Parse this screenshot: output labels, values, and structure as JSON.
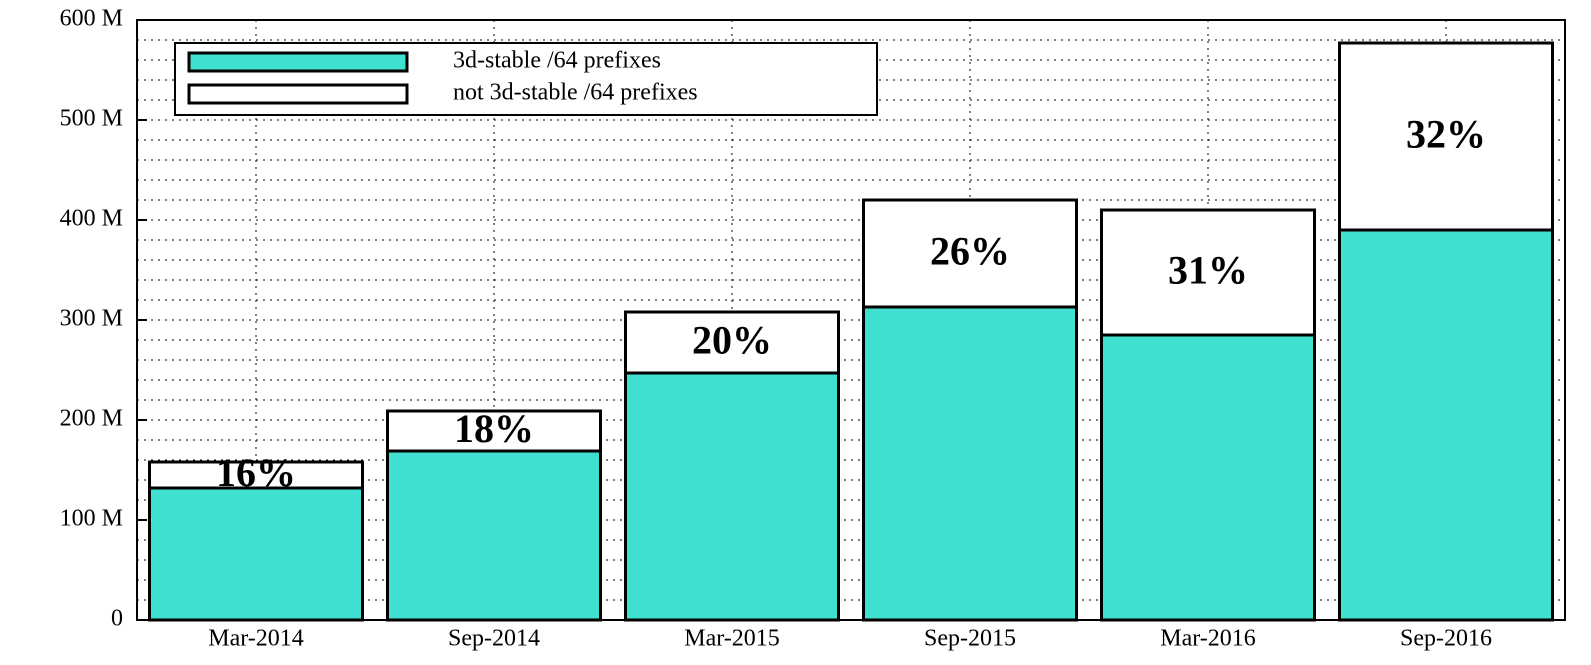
{
  "chart_data": {
    "type": "stacked_bar",
    "categories": [
      "Mar-2014",
      "Sep-2014",
      "Mar-2015",
      "Sep-2015",
      "Mar-2016",
      "Sep-2016"
    ],
    "series": [
      {
        "name": "3d-stable /64 prefixes",
        "color": "#40e0d0",
        "values": [
          132,
          169,
          247,
          313,
          285,
          390
        ]
      },
      {
        "name": "not 3d-stable /64 prefixes",
        "color": "#ffffff",
        "values": [
          26,
          40,
          61,
          107,
          125,
          187
        ]
      }
    ],
    "annotations": [
      "16%",
      "18%",
      "20%",
      "26%",
      "31%",
      "32%"
    ],
    "ylim": [
      0,
      600
    ],
    "yticks": [
      0,
      {
        "value": 100,
        "label": "100 M"
      },
      {
        "value": 200,
        "label": "200 M"
      },
      {
        "value": 300,
        "label": "300 M"
      },
      {
        "value": 400,
        "label": "400 M"
      },
      {
        "value": 500,
        "label": "500 M"
      },
      {
        "value": 600,
        "label": "600 M"
      }
    ],
    "minor_yticks": [
      20,
      40,
      60,
      80,
      120,
      140,
      160,
      180,
      220,
      240,
      260,
      280,
      320,
      340,
      360,
      380,
      420,
      440,
      460,
      480,
      520,
      540,
      560,
      580
    ],
    "grid": true,
    "legend": "upper left"
  }
}
